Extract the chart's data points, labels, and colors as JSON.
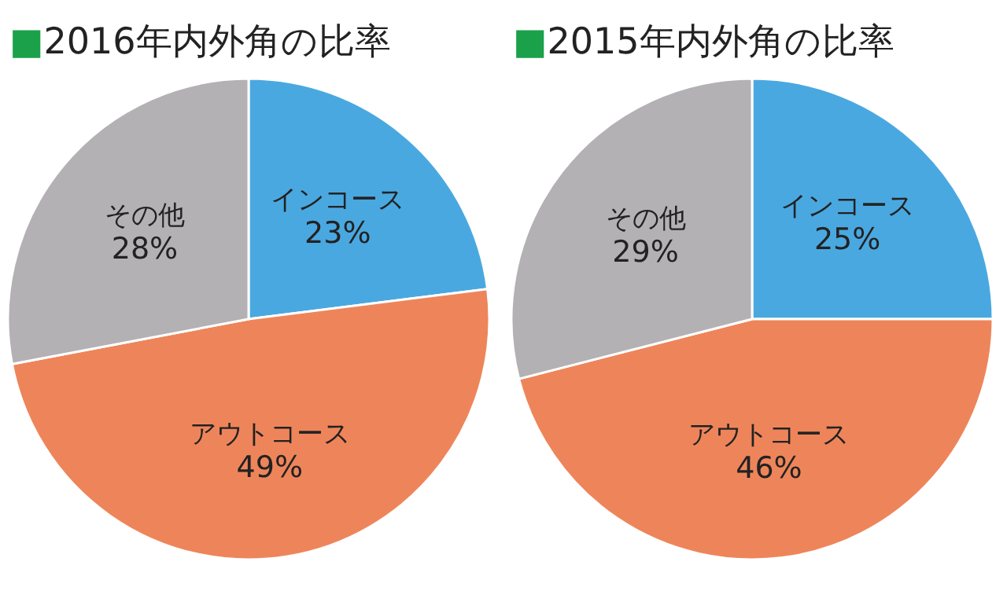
{
  "chart_data": [
    {
      "type": "pie",
      "title": "■2016年内外角の比率",
      "categories": [
        "インコース",
        "アウトコース",
        "その他"
      ],
      "values": [
        23,
        49,
        28
      ],
      "colors": [
        "#4aa8e0",
        "#ee855a",
        "#b3b1b4"
      ],
      "value_labels": [
        "23%",
        "49%",
        "28%"
      ]
    },
    {
      "type": "pie",
      "title": "■2015年内外角の比率",
      "categories": [
        "インコース",
        "アウトコース",
        "その他"
      ],
      "values": [
        25,
        46,
        29
      ],
      "colors": [
        "#4aa8e0",
        "#ee855a",
        "#b3b1b4"
      ],
      "value_labels": [
        "25%",
        "46%",
        "29%"
      ]
    }
  ]
}
